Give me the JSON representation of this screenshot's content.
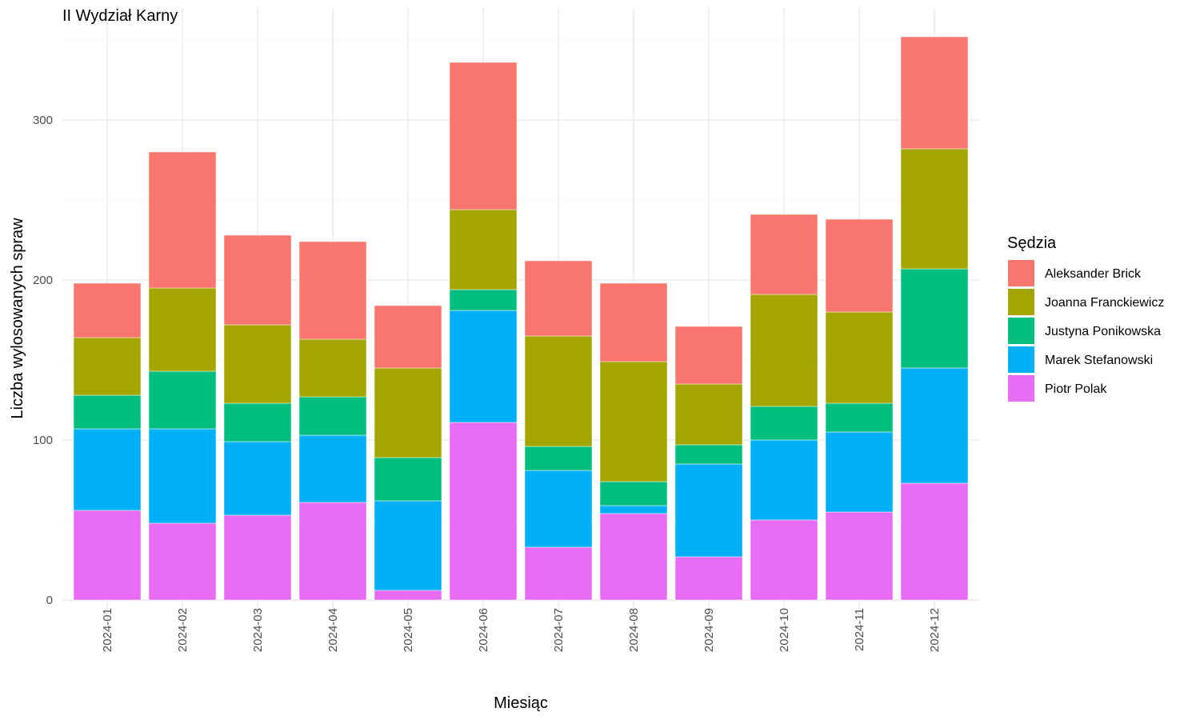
{
  "chart_data": {
    "type": "bar",
    "stacked": true,
    "title": "II Wydział Karny",
    "xlabel": "Miesiąc",
    "ylabel": "Liczba wylosowanych spraw",
    "ylim": [
      0,
      360
    ],
    "yticks": [
      0,
      100,
      200,
      300
    ],
    "grid": true,
    "legend": {
      "title": "Sędzia",
      "position": "right"
    },
    "categories": [
      "2024-01",
      "2024-02",
      "2024-03",
      "2024-04",
      "2024-05",
      "2024-06",
      "2024-07",
      "2024-08",
      "2024-09",
      "2024-10",
      "2024-11",
      "2024-12"
    ],
    "series": [
      {
        "name": "Piotr Polak",
        "color": "#E76BF3",
        "values": [
          56,
          48,
          53,
          61,
          6,
          111,
          33,
          54,
          27,
          50,
          55,
          73
        ]
      },
      {
        "name": "Marek Stefanowski",
        "color": "#00B0F6",
        "values": [
          51,
          59,
          46,
          42,
          56,
          70,
          48,
          5,
          58,
          50,
          50,
          72
        ]
      },
      {
        "name": "Justyna Ponikowska",
        "color": "#00BF7D",
        "values": [
          21,
          36,
          24,
          24,
          27,
          13,
          15,
          15,
          12,
          21,
          18,
          62
        ]
      },
      {
        "name": "Joanna Franckiewicz",
        "color": "#A3A500",
        "values": [
          36,
          52,
          49,
          36,
          56,
          50,
          69,
          75,
          38,
          70,
          57,
          75
        ]
      },
      {
        "name": "Aleksander Brick",
        "color": "#F8766D",
        "values": [
          34,
          85,
          56,
          61,
          39,
          92,
          47,
          49,
          36,
          50,
          58,
          70
        ]
      }
    ],
    "legend_order": [
      "Aleksander Brick",
      "Joanna Franckiewicz",
      "Justyna Ponikowska",
      "Marek Stefanowski",
      "Piotr Polak"
    ]
  }
}
